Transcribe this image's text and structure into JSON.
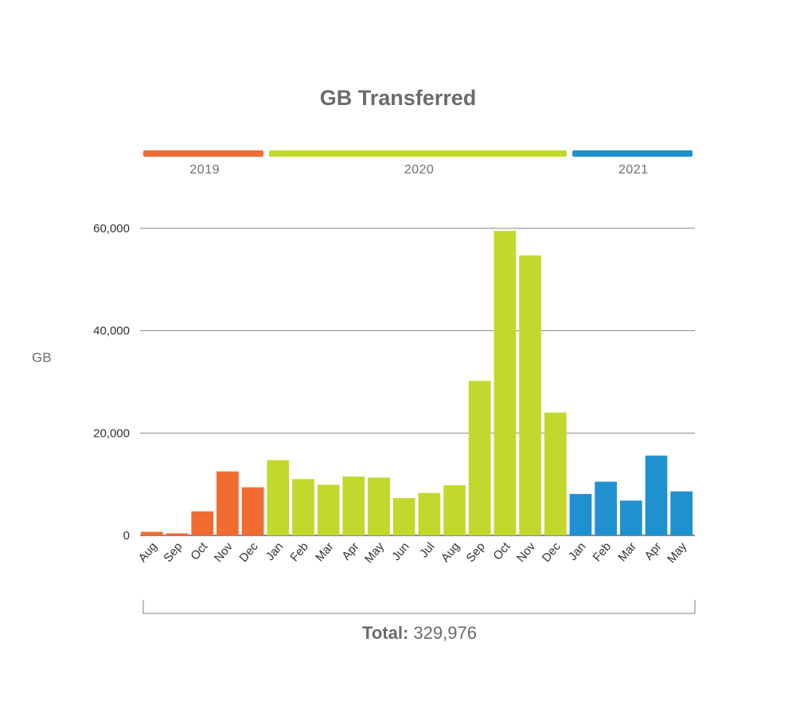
{
  "chart_data": {
    "type": "bar",
    "title": "GB Transferred",
    "ylabel": "GB",
    "xlabel": "",
    "ylim": [
      0,
      60000
    ],
    "yticks": [
      0,
      20000,
      40000,
      60000
    ],
    "ytick_labels": [
      "0",
      "20,000",
      "40,000",
      "60,000"
    ],
    "grid": true,
    "categories": [
      "Aug",
      "Sep",
      "Oct",
      "Nov",
      "Dec",
      "Jan",
      "Feb",
      "Mar",
      "Apr",
      "May",
      "Jun",
      "Jul",
      "Aug",
      "Sep",
      "Oct",
      "Nov",
      "Dec",
      "Jan",
      "Feb",
      "Mar",
      "Apr",
      "May"
    ],
    "values": [
      700,
      400,
      4700,
      12500,
      9400,
      14700,
      11000,
      9900,
      11500,
      11300,
      7300,
      8300,
      9800,
      30200,
      59500,
      54700,
      24000,
      8100,
      10500,
      6800,
      15600,
      8600
    ],
    "years": [
      {
        "label": "2019",
        "start": 0,
        "end": 4,
        "color": "#f26b31"
      },
      {
        "label": "2020",
        "start": 5,
        "end": 16,
        "color": "#c2d82c"
      },
      {
        "label": "2021",
        "start": 17,
        "end": 21,
        "color": "#1f90d0"
      }
    ],
    "total_label": "Total:",
    "total_value": "329,976"
  }
}
